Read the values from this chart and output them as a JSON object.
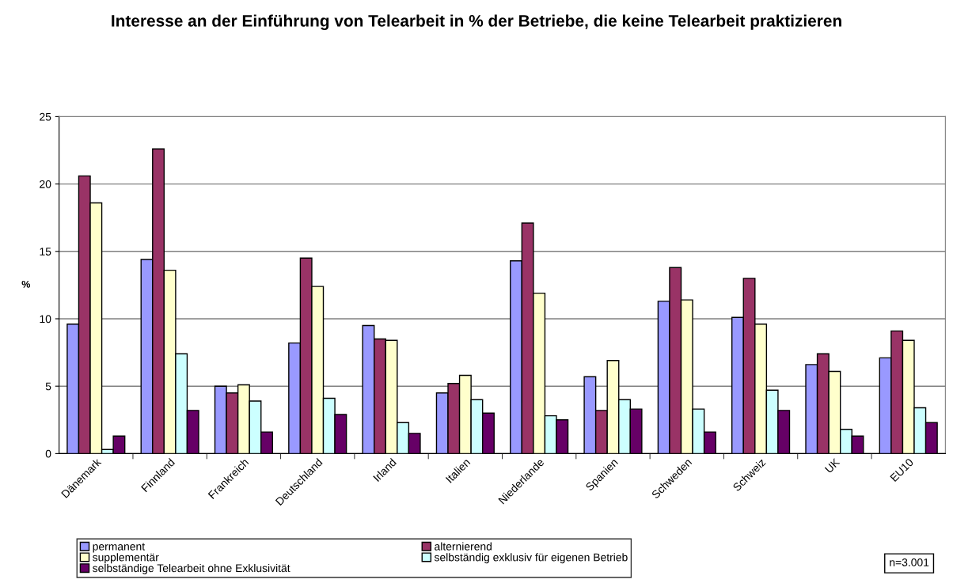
{
  "chart_data": {
    "type": "bar",
    "title": "Interesse an der Einführung von Telearbeit in % der Betriebe, die keine Telearbeit praktizieren",
    "ylabel": "%",
    "categories": [
      "Dänemark",
      "Finnland",
      "Frankreich",
      "Deutschland",
      "Irland",
      "Italien",
      "Niederlande",
      "Spanien",
      "Schweden",
      "Schweiz",
      "UK",
      "EU10"
    ],
    "series": [
      {
        "name": "permanent",
        "color": "#9999ff",
        "values": [
          9.6,
          14.4,
          5.0,
          8.2,
          9.5,
          4.5,
          14.3,
          5.7,
          11.3,
          10.1,
          6.6,
          7.1
        ]
      },
      {
        "name": "alternierend",
        "color": "#993366",
        "values": [
          20.6,
          22.6,
          4.5,
          14.5,
          8.5,
          5.2,
          17.1,
          3.2,
          13.8,
          13.0,
          7.4,
          9.1
        ]
      },
      {
        "name": "supplementär",
        "color": "#ffffcc",
        "values": [
          18.6,
          13.6,
          5.1,
          12.4,
          8.4,
          5.8,
          11.9,
          6.9,
          11.4,
          9.6,
          6.1,
          8.4
        ]
      },
      {
        "name": "selbständig exklusiv für eigenen Betrieb",
        "color": "#ccffff",
        "values": [
          0.3,
          7.4,
          3.9,
          4.1,
          2.3,
          4.0,
          2.8,
          4.0,
          3.3,
          4.7,
          1.8,
          3.4
        ]
      },
      {
        "name": "selbständige Telearbeit ohne Exklusivität",
        "color": "#660066",
        "values": [
          1.3,
          3.2,
          1.6,
          2.9,
          1.5,
          3.0,
          2.5,
          3.3,
          1.6,
          3.2,
          1.3,
          2.3
        ]
      }
    ],
    "ylim": [
      0,
      25
    ],
    "yticks": [
      0,
      5,
      10,
      15,
      20,
      25
    ],
    "grid": "y",
    "legend": "bottom",
    "annotations": [
      "n=3.001"
    ]
  }
}
